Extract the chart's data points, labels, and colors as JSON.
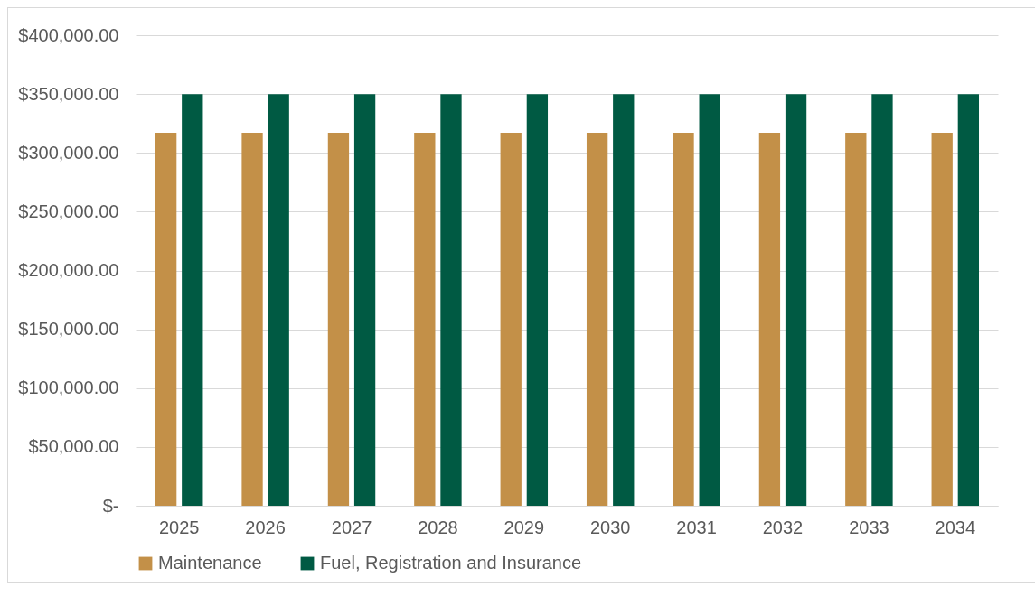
{
  "chart_data": {
    "type": "bar",
    "categories": [
      "2025",
      "2026",
      "2027",
      "2028",
      "2029",
      "2030",
      "2031",
      "2032",
      "2033",
      "2034"
    ],
    "series": [
      {
        "name": "Maintenance",
        "color": "#c39048",
        "values": [
          317000,
          317000,
          317000,
          317000,
          317000,
          317000,
          317000,
          317000,
          317000,
          317000
        ]
      },
      {
        "name": "Fuel, Registration and Insurance",
        "color": "#005a43",
        "values": [
          350000,
          350000,
          350000,
          350000,
          350000,
          350000,
          350000,
          350000,
          350000,
          350000
        ]
      }
    ],
    "ylim": [
      0,
      400000
    ],
    "yticks": [
      {
        "value": 0,
        "label": "$-"
      },
      {
        "value": 50000,
        "label": "$50,000.00"
      },
      {
        "value": 100000,
        "label": "$100,000.00"
      },
      {
        "value": 150000,
        "label": "$150,000.00"
      },
      {
        "value": 200000,
        "label": "$200,000.00"
      },
      {
        "value": 250000,
        "label": "$250,000.00"
      },
      {
        "value": 300000,
        "label": "$300,000.00"
      },
      {
        "value": 350000,
        "label": "$350,000.00"
      },
      {
        "value": 400000,
        "label": "$400,000.00"
      }
    ],
    "grid": "y",
    "legend": "bottom"
  }
}
